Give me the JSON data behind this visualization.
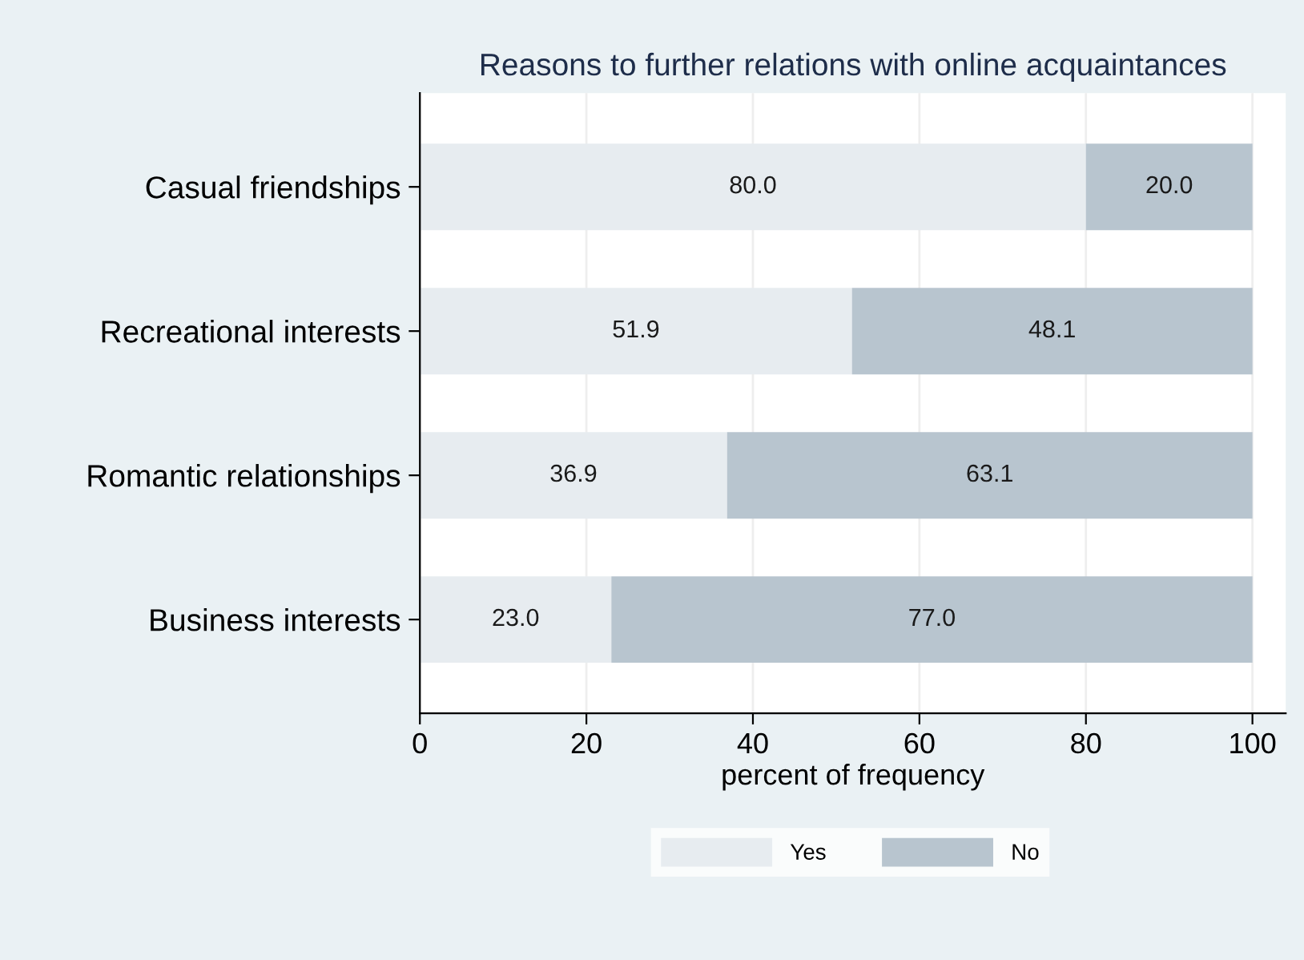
{
  "chart_data": {
    "type": "bar",
    "orientation": "horizontal",
    "stacked": true,
    "title": "Reasons to further relations with online acquaintances",
    "xlabel": "percent of frequency",
    "categories": [
      "Casual friendships",
      "Recreational interests",
      "Romantic relationships",
      "Business interests"
    ],
    "series": [
      {
        "name": "Yes",
        "color": "#e7ecf0",
        "values": [
          80.0,
          51.9,
          36.9,
          23.0
        ],
        "value_labels": [
          "80.0",
          "51.9",
          "36.9",
          "23.0"
        ]
      },
      {
        "name": "No",
        "color": "#b8c5cf",
        "values": [
          20.0,
          48.1,
          63.1,
          77.0
        ],
        "value_labels": [
          "20.0",
          "48.1",
          "63.1",
          "77.0"
        ]
      }
    ],
    "xlim": [
      0,
      104
    ],
    "xticks": [
      0,
      20,
      40,
      60,
      80,
      100
    ],
    "grid": "x",
    "legend": "bottom"
  }
}
